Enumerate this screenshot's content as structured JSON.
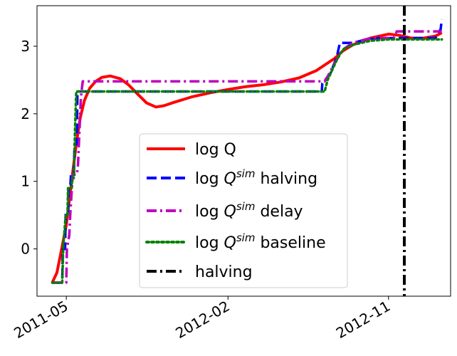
{
  "chart_data": {
    "type": "line",
    "title": "",
    "xlabel": "",
    "ylabel": "",
    "xlim": [
      "2011-03-12",
      "2013-02-15"
    ],
    "ylim": [
      -0.7,
      3.6
    ],
    "x_ticks": [
      {
        "date": "2011-05-01",
        "label": "2011-05"
      },
      {
        "date": "2012-02-01",
        "label": "2012-02"
      },
      {
        "date": "2012-11-01",
        "label": "2012-11"
      }
    ],
    "y_ticks": [
      {
        "value": 0,
        "label": "0"
      },
      {
        "value": 1,
        "label": "1"
      },
      {
        "value": 2,
        "label": "2"
      },
      {
        "value": 3,
        "label": "3"
      }
    ],
    "grid": false,
    "legend_position": "center",
    "series": [
      {
        "key": "logQ",
        "style": "solid",
        "color": "#ff0000",
        "points": [
          [
            "2011-04-07",
            -0.5
          ],
          [
            "2011-04-15",
            -0.35
          ],
          [
            "2011-04-22",
            -0.05
          ],
          [
            "2011-05-01",
            0.35
          ],
          [
            "2011-05-10",
            1.0
          ],
          [
            "2011-05-18",
            1.55
          ],
          [
            "2011-05-25",
            1.95
          ],
          [
            "2011-06-01",
            2.2
          ],
          [
            "2011-06-10",
            2.38
          ],
          [
            "2011-06-20",
            2.48
          ],
          [
            "2011-07-01",
            2.54
          ],
          [
            "2011-07-15",
            2.56
          ],
          [
            "2011-08-01",
            2.52
          ],
          [
            "2011-08-15",
            2.43
          ],
          [
            "2011-09-01",
            2.28
          ],
          [
            "2011-09-15",
            2.16
          ],
          [
            "2011-10-01",
            2.1
          ],
          [
            "2011-10-15",
            2.12
          ],
          [
            "2011-11-01",
            2.17
          ],
          [
            "2011-12-01",
            2.25
          ],
          [
            "2012-01-01",
            2.31
          ],
          [
            "2012-02-01",
            2.36
          ],
          [
            "2012-03-01",
            2.4
          ],
          [
            "2012-04-01",
            2.43
          ],
          [
            "2012-05-01",
            2.47
          ],
          [
            "2012-06-01",
            2.53
          ],
          [
            "2012-07-01",
            2.64
          ],
          [
            "2012-08-01",
            2.82
          ],
          [
            "2012-08-15",
            2.93
          ],
          [
            "2012-09-01",
            3.02
          ],
          [
            "2012-10-01",
            3.12
          ],
          [
            "2012-11-01",
            3.18
          ],
          [
            "2012-11-20",
            3.16
          ],
          [
            "2012-12-10",
            3.12
          ],
          [
            "2012-12-31",
            3.12
          ],
          [
            "2013-01-20",
            3.15
          ],
          [
            "2013-01-31",
            3.2
          ]
        ]
      },
      {
        "key": "halving",
        "style": "dashed",
        "color": "#0000ff",
        "points": [
          [
            "2011-04-07",
            -0.5
          ],
          [
            "2011-04-24",
            -0.5
          ],
          [
            "2011-04-25",
            0.0
          ],
          [
            "2011-04-29",
            0.0
          ],
          [
            "2011-04-30",
            0.55
          ],
          [
            "2011-05-04",
            0.55
          ],
          [
            "2011-05-05",
            0.95
          ],
          [
            "2011-05-08",
            0.95
          ],
          [
            "2011-05-09",
            1.1
          ],
          [
            "2011-05-14",
            1.1
          ],
          [
            "2011-05-15",
            1.55
          ],
          [
            "2011-05-19",
            1.55
          ],
          [
            "2011-05-20",
            2.33
          ],
          [
            "2012-07-10",
            2.33
          ],
          [
            "2012-07-11",
            2.45
          ],
          [
            "2012-07-25",
            2.6
          ],
          [
            "2012-08-05",
            2.85
          ],
          [
            "2012-08-10",
            3.05
          ],
          [
            "2012-09-01",
            3.05
          ],
          [
            "2012-09-15",
            3.08
          ],
          [
            "2012-10-15",
            3.12
          ],
          [
            "2012-11-15",
            3.12
          ],
          [
            "2013-01-20",
            3.12
          ],
          [
            "2013-01-25",
            3.2
          ],
          [
            "2013-01-29",
            3.25
          ],
          [
            "2013-01-31",
            3.4
          ]
        ]
      },
      {
        "key": "delay",
        "style": "dashdot",
        "color": "#bf00bf",
        "points": [
          [
            "2011-04-07",
            -0.5
          ],
          [
            "2011-05-01",
            -0.5
          ],
          [
            "2011-05-02",
            0.0
          ],
          [
            "2011-05-06",
            0.2
          ],
          [
            "2011-05-08",
            0.55
          ],
          [
            "2011-05-12",
            1.1
          ],
          [
            "2011-05-19",
            1.1
          ],
          [
            "2011-05-21",
            1.25
          ],
          [
            "2011-05-26",
            2.25
          ],
          [
            "2011-05-29",
            2.48
          ],
          [
            "2012-07-15",
            2.48
          ],
          [
            "2012-07-20",
            2.55
          ],
          [
            "2012-08-01",
            2.75
          ],
          [
            "2012-08-15",
            2.95
          ],
          [
            "2012-09-01",
            3.05
          ],
          [
            "2012-10-01",
            3.12
          ],
          [
            "2012-11-10",
            3.12
          ],
          [
            "2012-11-15",
            3.22
          ],
          [
            "2013-01-31",
            3.22
          ]
        ]
      },
      {
        "key": "baseline",
        "style": "dotted",
        "color": "#008000",
        "points": [
          [
            "2011-04-07",
            -0.5
          ],
          [
            "2011-04-24",
            -0.5
          ],
          [
            "2011-04-26",
            0.05
          ],
          [
            "2011-04-30",
            0.5
          ],
          [
            "2011-05-03",
            0.5
          ],
          [
            "2011-05-04",
            0.9
          ],
          [
            "2011-05-10",
            0.9
          ],
          [
            "2011-05-11",
            1.05
          ],
          [
            "2011-05-14",
            1.05
          ],
          [
            "2011-05-16",
            1.8
          ],
          [
            "2011-05-18",
            2.33
          ],
          [
            "2012-07-15",
            2.33
          ],
          [
            "2012-07-20",
            2.5
          ],
          [
            "2012-08-05",
            2.8
          ],
          [
            "2012-08-15",
            2.95
          ],
          [
            "2012-09-01",
            3.02
          ],
          [
            "2012-10-01",
            3.08
          ],
          [
            "2012-11-01",
            3.1
          ],
          [
            "2013-01-31",
            3.1
          ]
        ]
      }
    ],
    "vline": {
      "key": "halving_line",
      "date": "2012-11-28",
      "style": "dashdot",
      "color": "#000000"
    },
    "legend": [
      {
        "key": "logQ",
        "style": "solid",
        "color": "#ff0000",
        "label": "log Q"
      },
      {
        "key": "halving",
        "style": "dashed",
        "color": "#0000ff",
        "label_pre": "log ",
        "label_q": "Q",
        "label_sup": "sim",
        "label_post": " halving"
      },
      {
        "key": "delay",
        "style": "dashdot",
        "color": "#bf00bf",
        "label_pre": "log ",
        "label_q": "Q",
        "label_sup": "sim",
        "label_post": " delay"
      },
      {
        "key": "baseline",
        "style": "dotted",
        "color": "#008000",
        "label_pre": "log ",
        "label_q": "Q",
        "label_sup": "sim",
        "label_post": " baseline"
      },
      {
        "key": "halving_line",
        "style": "dashdot",
        "color": "#000000",
        "label": "halving"
      }
    ]
  }
}
